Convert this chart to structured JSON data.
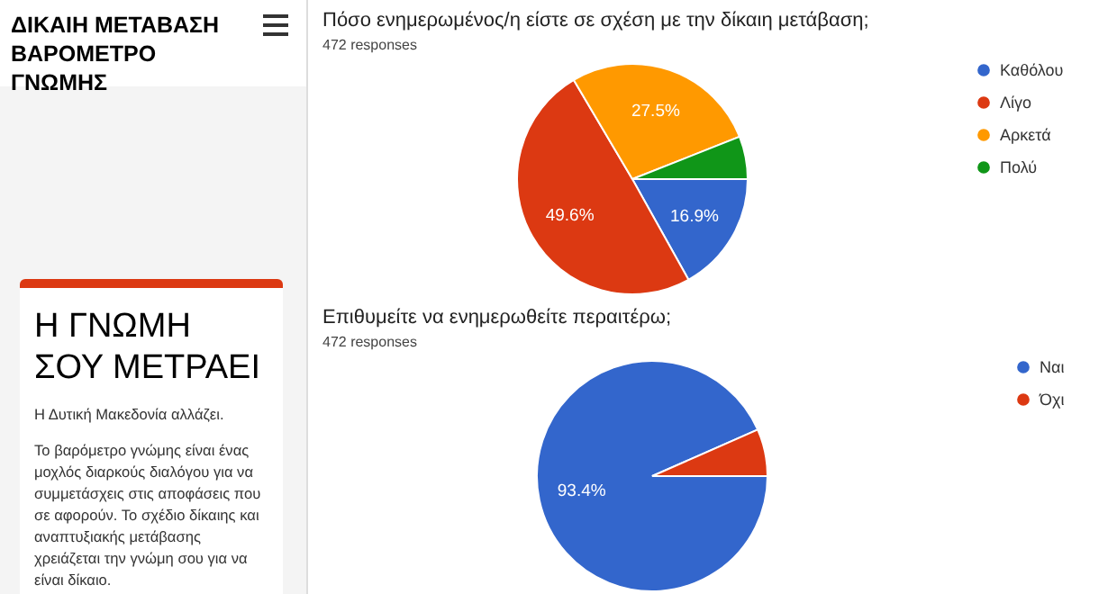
{
  "chart_data": [
    {
      "type": "other",
      "title": "ΔΙΚΑΙΗ ΜΕΤΑΒΑΣΗ ΒΑΡΟΜΕΤΡΟ ΓΝΩΜΗΣ",
      "subtitle": "Η ΓΝΩΜΗ ΣΟΥ ΜΕΤΡΑΕΙ",
      "annotations": [
        "Η Δυτική Μακεδονία αλλάζει.",
        "Το βαρόμετρο γνώμης είναι ένας μοχλός διαρκούς διαλόγου για να συμμετάσχεις στις αποφάσεις που σε αφορούν. Το σχέδιο δίκαιης και αναπτυξιακής μετάβασης χρειάζεται την γνώμη σου για να είναι δίκαιο."
      ]
    },
    {
      "type": "pie",
      "title": "Πόσο ενημερωμένος/η είστε σε σχέση με την δίκαιη μετάβαση;",
      "subtitle": "472 responses",
      "categories": [
        "Καθόλου",
        "Λίγο",
        "Αρκετά",
        "Πολύ"
      ],
      "values": [
        16.9,
        49.6,
        27.5,
        6.0
      ],
      "colors": [
        "#3366cc",
        "#dc3912",
        "#ff9900",
        "#109618"
      ],
      "value_labels": [
        "16.9%",
        "49.6%",
        "27.5%",
        null
      ],
      "legend": "right"
    },
    {
      "type": "pie",
      "title": "Επιθυμείτε να ενημερωθείτε περαιτέρω;",
      "subtitle": "472 responses",
      "categories": [
        "Ναι",
        "Όχι"
      ],
      "values": [
        93.4,
        6.6
      ],
      "colors": [
        "#3366cc",
        "#dc3912"
      ],
      "value_labels": [
        "93.4%",
        null
      ],
      "legend": "right"
    }
  ]
}
